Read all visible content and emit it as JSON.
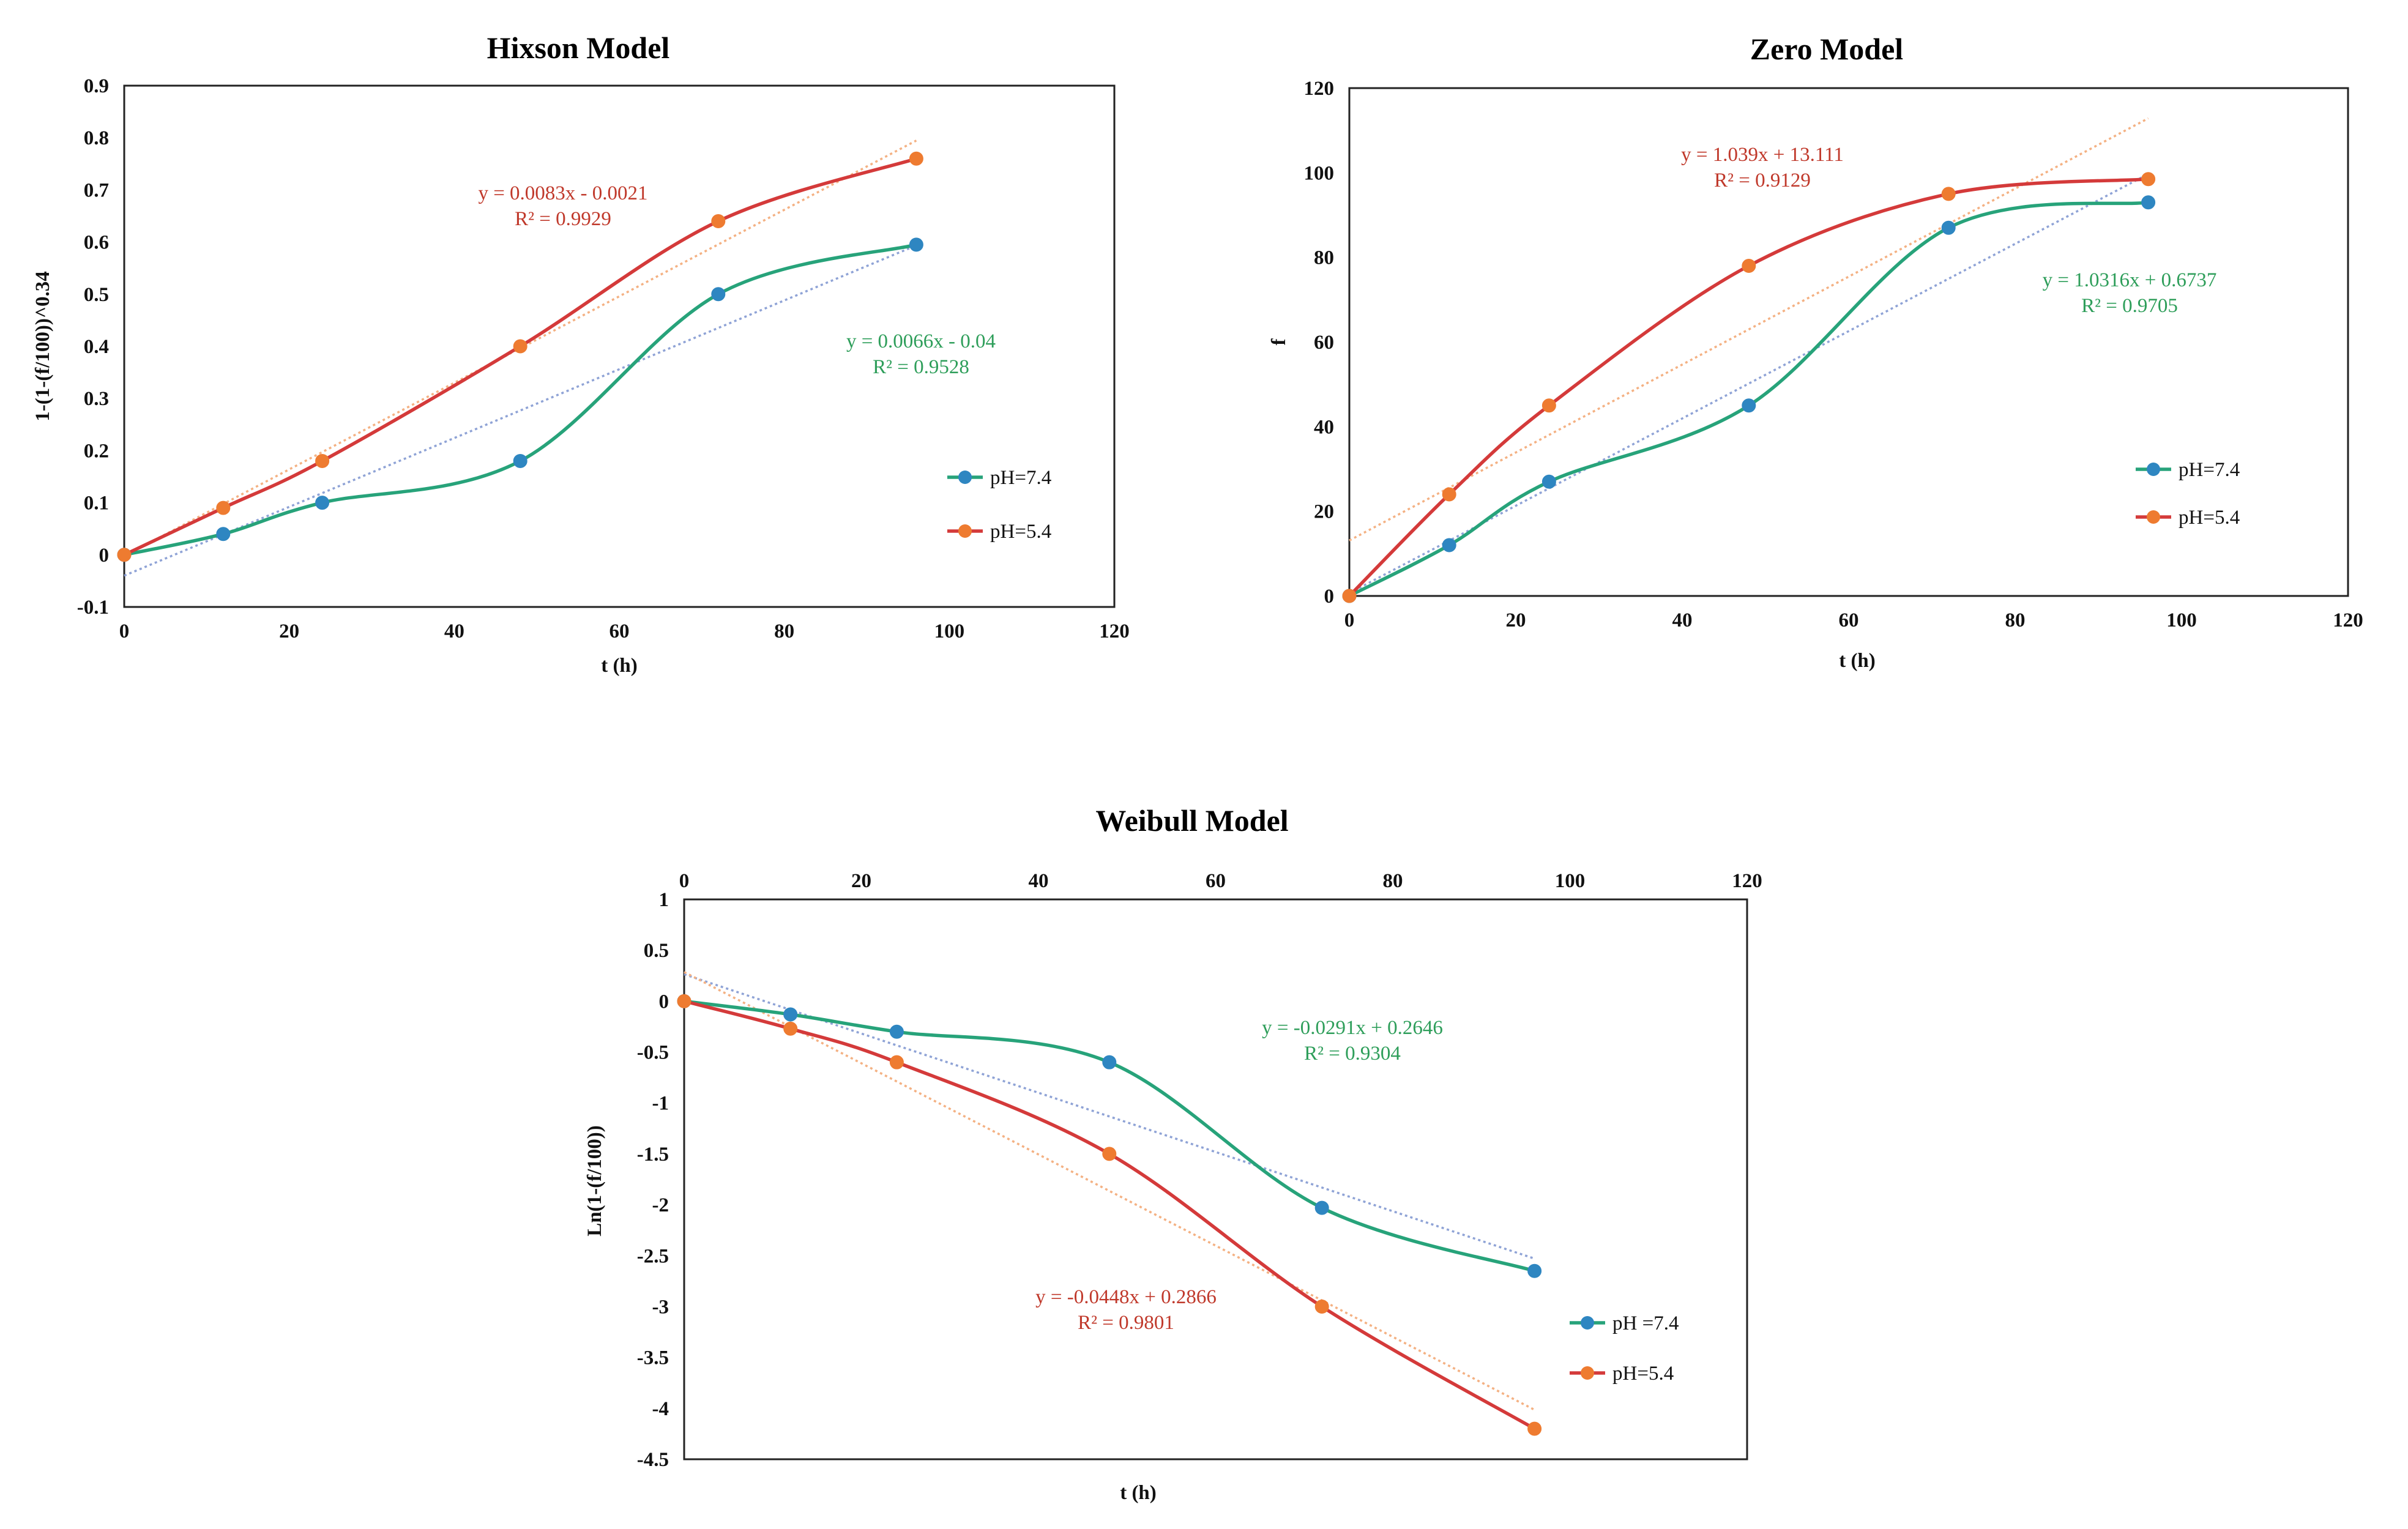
{
  "chart_data": [
    {
      "type": "line",
      "title": "Hixson Model",
      "xlabel": "t (h)",
      "ylabel": "1-(1-(f/100))^0.34",
      "xlim": [
        0,
        120
      ],
      "ylim": [
        -0.1,
        0.9
      ],
      "xticks": [
        "0",
        "20",
        "40",
        "60",
        "80",
        "100",
        "120"
      ],
      "yticks": [
        "-0.1",
        "0",
        "0.1",
        "0.2",
        "0.3",
        "0.4",
        "0.5",
        "0.6",
        "0.7",
        "0.8",
        "0.9"
      ],
      "x_axis_position": "bottom",
      "legend_position": "right",
      "series": [
        {
          "name": "pH=7.4",
          "color": "#2e86c1",
          "line_color": "#27a37a",
          "x": [
            0,
            12,
            24,
            48,
            72,
            96
          ],
          "values": [
            0,
            0.04,
            0.1,
            0.18,
            0.5,
            0.595
          ]
        },
        {
          "name": "pH=5.4",
          "color": "#ee7b30",
          "line_color": "#d43a3a",
          "x": [
            0,
            12,
            24,
            48,
            72,
            96
          ],
          "values": [
            0,
            0.09,
            0.18,
            0.4,
            0.64,
            0.76
          ]
        }
      ],
      "trendlines": [
        {
          "series": "pH=7.4",
          "slope": 0.0066,
          "intercept": -0.04,
          "x_range": [
            0,
            96
          ],
          "color": "#8fa3d6",
          "equation": "y = 0.0066x - 0.04",
          "r2": "R² = 0.9528",
          "label_color": "#2e9e5a"
        },
        {
          "series": "pH=5.4",
          "slope": 0.0083,
          "intercept": -0.0021,
          "x_range": [
            0,
            96
          ],
          "color": "#f4b183",
          "equation": "y = 0.0083x - 0.0021",
          "r2": "R² = 0.9929",
          "label_color": "#c0392b"
        }
      ]
    },
    {
      "type": "line",
      "title": "Zero Model",
      "xlabel": "t (h)",
      "ylabel": "f",
      "xlim": [
        0,
        120
      ],
      "ylim": [
        0,
        120
      ],
      "xticks": [
        "0",
        "20",
        "40",
        "60",
        "80",
        "100",
        "120"
      ],
      "yticks": [
        "0",
        "20",
        "40",
        "60",
        "80",
        "100",
        "120"
      ],
      "x_axis_position": "bottom",
      "legend_position": "right",
      "series": [
        {
          "name": "pH=7.4",
          "color": "#2e86c1",
          "line_color": "#27a37a",
          "x": [
            0,
            12,
            24,
            48,
            72,
            96
          ],
          "values": [
            0,
            12,
            27,
            45,
            87,
            93
          ]
        },
        {
          "name": "pH=5.4",
          "color": "#ee7b30",
          "line_color": "#d43a3a",
          "x": [
            0,
            12,
            24,
            48,
            72,
            96
          ],
          "values": [
            0,
            24,
            45,
            78,
            95,
            98.5
          ]
        }
      ],
      "trendlines": [
        {
          "series": "pH=7.4",
          "slope": 1.0316,
          "intercept": 0.6737,
          "x_range": [
            0,
            96
          ],
          "color": "#8fa3d6",
          "equation": "y = 1.0316x  + 0.6737",
          "r2": "R² = 0.9705",
          "label_color": "#2e9e5a"
        },
        {
          "series": "pH=5.4",
          "slope": 1.039,
          "intercept": 13.111,
          "x_range": [
            0,
            96
          ],
          "color": "#f4b183",
          "equation": "y = 1.039x  + 13.111",
          "r2": "R² = 0.9129",
          "label_color": "#c0392b"
        }
      ]
    },
    {
      "type": "line",
      "title": "Weibull Model",
      "xlabel": "t (h)",
      "ylabel": "Ln(1-(f/100))",
      "xlim": [
        0,
        120
      ],
      "ylim": [
        -4.5,
        1
      ],
      "xticks": [
        "0",
        "20",
        "40",
        "60",
        "80",
        "100",
        "120"
      ],
      "yticks": [
        "-4.5",
        "-4",
        "-3.5",
        "-3",
        "-2.5",
        "-2",
        "-1.5",
        "-1",
        "-0.5",
        "0",
        "0.5",
        "1"
      ],
      "x_axis_position": "top",
      "legend_position": "right",
      "series": [
        {
          "name": "pH =7.4",
          "color": "#2e86c1",
          "line_color": "#27a37a",
          "x": [
            0,
            12,
            24,
            48,
            72,
            96
          ],
          "values": [
            0,
            -0.13,
            -0.3,
            -0.6,
            -2.03,
            -2.65
          ]
        },
        {
          "name": "pH=5.4",
          "color": "#ee7b30",
          "line_color": "#d43a3a",
          "x": [
            0,
            12,
            24,
            48,
            72,
            96
          ],
          "values": [
            0,
            -0.27,
            -0.6,
            -1.5,
            -3.0,
            -4.2
          ]
        }
      ],
      "trendlines": [
        {
          "series": "pH =7.4",
          "slope": -0.0291,
          "intercept": 0.2646,
          "x_range": [
            0,
            96
          ],
          "color": "#8fa3d6",
          "equation": "y = -0.0291x  + 0.2646",
          "r2": "R² = 0.9304",
          "label_color": "#2e9e5a"
        },
        {
          "series": "pH=5.4",
          "slope": -0.0448,
          "intercept": 0.2866,
          "x_range": [
            0,
            96
          ],
          "color": "#f4b183",
          "equation": "y = -0.0448x  + 0.2866",
          "r2": "R² = 0.9801",
          "label_color": "#c0392b"
        }
      ]
    }
  ]
}
